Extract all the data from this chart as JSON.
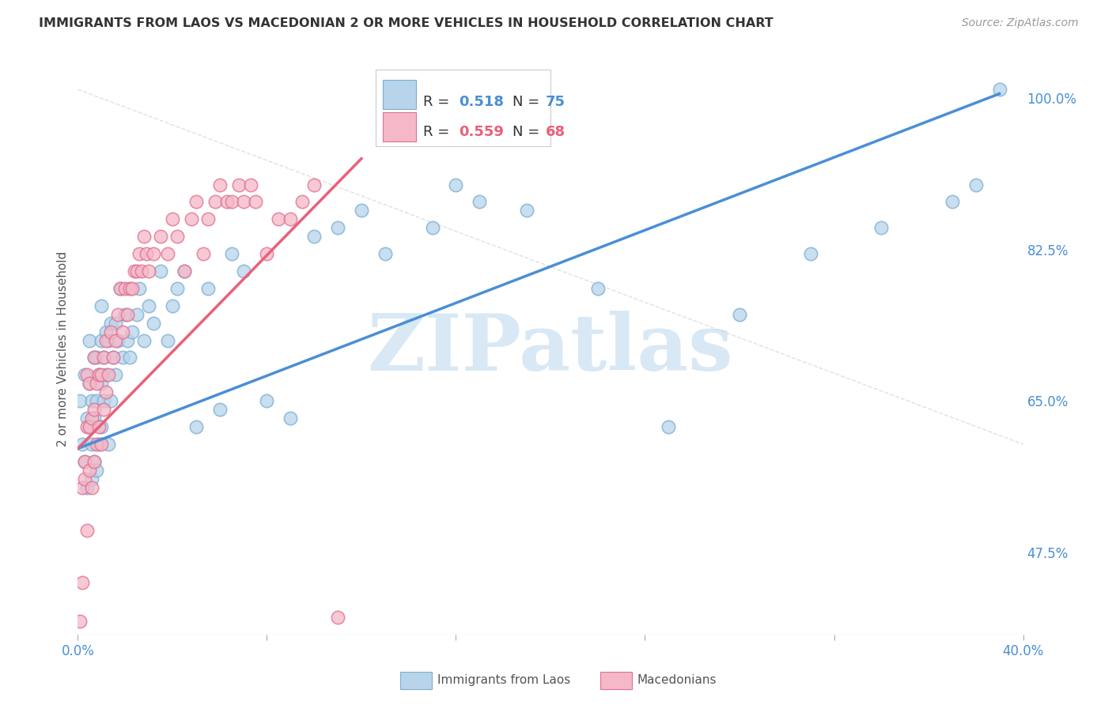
{
  "title": "IMMIGRANTS FROM LAOS VS MACEDONIAN 2 OR MORE VEHICLES IN HOUSEHOLD CORRELATION CHART",
  "source": "Source: ZipAtlas.com",
  "ylabel": "2 or more Vehicles in Household",
  "xlim": [
    0.0,
    0.4
  ],
  "ylim": [
    0.38,
    1.04
  ],
  "xtick_vals": [
    0.0,
    0.08,
    0.16,
    0.24,
    0.32,
    0.4
  ],
  "xtick_labels": [
    "0.0%",
    "",
    "",
    "",
    "",
    "40.0%"
  ],
  "right_ytick_vals": [
    0.475,
    0.65,
    0.825,
    1.0
  ],
  "right_ytick_labels": [
    "47.5%",
    "65.0%",
    "82.5%",
    "100.0%"
  ],
  "watermark": "ZIPatlas",
  "legend_r1": "R = 0.518",
  "legend_n1": "N = 75",
  "legend_r2": "R = 0.559",
  "legend_n2": "N = 68",
  "label1": "Immigrants from Laos",
  "label2": "Macedonians",
  "color1": "#b8d4ea",
  "color2": "#f5b8c8",
  "line_color1": "#4a8fd4",
  "line_color2": "#e8607a",
  "dot_edge1": "#7aafd4",
  "dot_edge2": "#e07090",
  "scatter1_x": [
    0.001,
    0.002,
    0.003,
    0.003,
    0.004,
    0.004,
    0.005,
    0.005,
    0.005,
    0.006,
    0.006,
    0.006,
    0.007,
    0.007,
    0.007,
    0.008,
    0.008,
    0.008,
    0.009,
    0.009,
    0.01,
    0.01,
    0.01,
    0.01,
    0.011,
    0.011,
    0.012,
    0.012,
    0.013,
    0.013,
    0.014,
    0.014,
    0.015,
    0.016,
    0.016,
    0.017,
    0.018,
    0.019,
    0.02,
    0.021,
    0.022,
    0.023,
    0.025,
    0.026,
    0.028,
    0.03,
    0.032,
    0.035,
    0.038,
    0.04,
    0.042,
    0.045,
    0.05,
    0.055,
    0.06,
    0.065,
    0.07,
    0.08,
    0.09,
    0.1,
    0.11,
    0.12,
    0.13,
    0.15,
    0.16,
    0.17,
    0.19,
    0.22,
    0.25,
    0.28,
    0.31,
    0.34,
    0.37,
    0.38,
    0.39
  ],
  "scatter1_y": [
    0.65,
    0.6,
    0.58,
    0.68,
    0.55,
    0.63,
    0.62,
    0.67,
    0.72,
    0.56,
    0.6,
    0.65,
    0.58,
    0.63,
    0.7,
    0.57,
    0.65,
    0.7,
    0.6,
    0.68,
    0.62,
    0.67,
    0.72,
    0.76,
    0.65,
    0.7,
    0.68,
    0.73,
    0.6,
    0.72,
    0.65,
    0.74,
    0.7,
    0.68,
    0.74,
    0.72,
    0.78,
    0.7,
    0.75,
    0.72,
    0.7,
    0.73,
    0.75,
    0.78,
    0.72,
    0.76,
    0.74,
    0.8,
    0.72,
    0.76,
    0.78,
    0.8,
    0.62,
    0.78,
    0.64,
    0.82,
    0.8,
    0.65,
    0.63,
    0.84,
    0.85,
    0.87,
    0.82,
    0.85,
    0.9,
    0.88,
    0.87,
    0.78,
    0.62,
    0.75,
    0.82,
    0.85,
    0.88,
    0.9,
    1.01
  ],
  "scatter2_x": [
    0.001,
    0.002,
    0.002,
    0.003,
    0.003,
    0.004,
    0.004,
    0.004,
    0.005,
    0.005,
    0.005,
    0.006,
    0.006,
    0.007,
    0.007,
    0.007,
    0.008,
    0.008,
    0.009,
    0.009,
    0.01,
    0.01,
    0.011,
    0.011,
    0.012,
    0.012,
    0.013,
    0.014,
    0.015,
    0.016,
    0.017,
    0.018,
    0.019,
    0.02,
    0.021,
    0.022,
    0.023,
    0.024,
    0.025,
    0.026,
    0.027,
    0.028,
    0.029,
    0.03,
    0.032,
    0.035,
    0.038,
    0.04,
    0.042,
    0.045,
    0.048,
    0.05,
    0.053,
    0.055,
    0.058,
    0.06,
    0.063,
    0.065,
    0.068,
    0.07,
    0.073,
    0.075,
    0.08,
    0.085,
    0.09,
    0.095,
    0.1,
    0.11
  ],
  "scatter2_y": [
    0.395,
    0.44,
    0.55,
    0.56,
    0.58,
    0.5,
    0.62,
    0.68,
    0.57,
    0.62,
    0.67,
    0.55,
    0.63,
    0.58,
    0.64,
    0.7,
    0.6,
    0.67,
    0.62,
    0.68,
    0.6,
    0.68,
    0.64,
    0.7,
    0.66,
    0.72,
    0.68,
    0.73,
    0.7,
    0.72,
    0.75,
    0.78,
    0.73,
    0.78,
    0.75,
    0.78,
    0.78,
    0.8,
    0.8,
    0.82,
    0.8,
    0.84,
    0.82,
    0.8,
    0.82,
    0.84,
    0.82,
    0.86,
    0.84,
    0.8,
    0.86,
    0.88,
    0.82,
    0.86,
    0.88,
    0.9,
    0.88,
    0.88,
    0.9,
    0.88,
    0.9,
    0.88,
    0.82,
    0.86,
    0.86,
    0.88,
    0.9,
    0.4
  ],
  "reg_line1_x": [
    0.0,
    0.39
  ],
  "reg_line1_y": [
    0.595,
    1.005
  ],
  "reg_line2_x": [
    0.0,
    0.12
  ],
  "reg_line2_y": [
    0.595,
    0.93
  ],
  "bg_color": "#ffffff",
  "grid_color": "#dddddd",
  "text_color_blue": "#4a8fd4",
  "text_color_pink": "#e8607a",
  "title_color": "#333333",
  "watermark_color": "#d8e8f4"
}
